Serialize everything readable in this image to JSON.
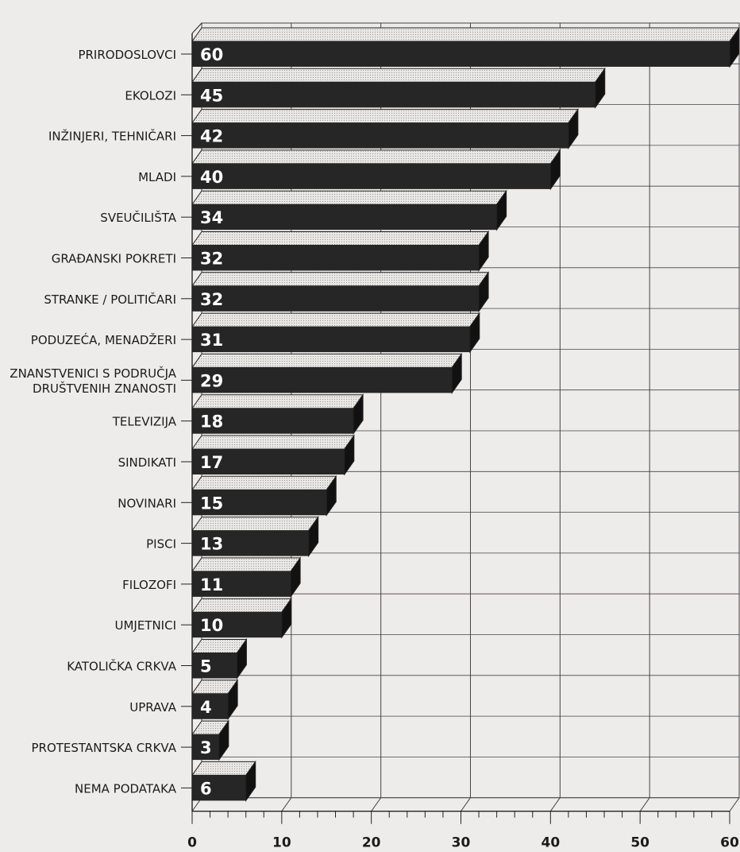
{
  "chart_data": {
    "type": "bar",
    "orientation": "horizontal",
    "style": "3d",
    "categories": [
      "PRIRODOSLOVCI",
      "EKOLOZI",
      "INŽINJERI, TEHNIČARI",
      "MLADI",
      "SVEUČILIŠTA",
      "GRAĐANSKI POKRETI",
      "STRANKE / POLITIČARI",
      "PODUZEĆA, MENADŽERI",
      "ZNANSTVENICI S PODRUČJA\nDRUŠTVENIH ZNANOSTI",
      "TELEVIZIJA",
      "SINDIKATI",
      "NOVINARI",
      "PISCI",
      "FILOZOFI",
      "UMJETNICI",
      "KATOLIČKA CRKVA",
      "UPRAVA",
      "PROTESTANTSKA CRKVA",
      "NEMA PODATAKA"
    ],
    "values": [
      60,
      45,
      42,
      40,
      34,
      32,
      32,
      31,
      29,
      18,
      17,
      15,
      13,
      11,
      10,
      5,
      4,
      3,
      6
    ],
    "xticks": [
      0,
      10,
      20,
      30,
      40,
      50,
      60
    ],
    "xlim": [
      0,
      60
    ],
    "grid": true,
    "colors": {
      "bar_front": "#262626",
      "bar_top": "#e6e4e1",
      "grid": "#444444",
      "background": "#eeeceb"
    }
  }
}
